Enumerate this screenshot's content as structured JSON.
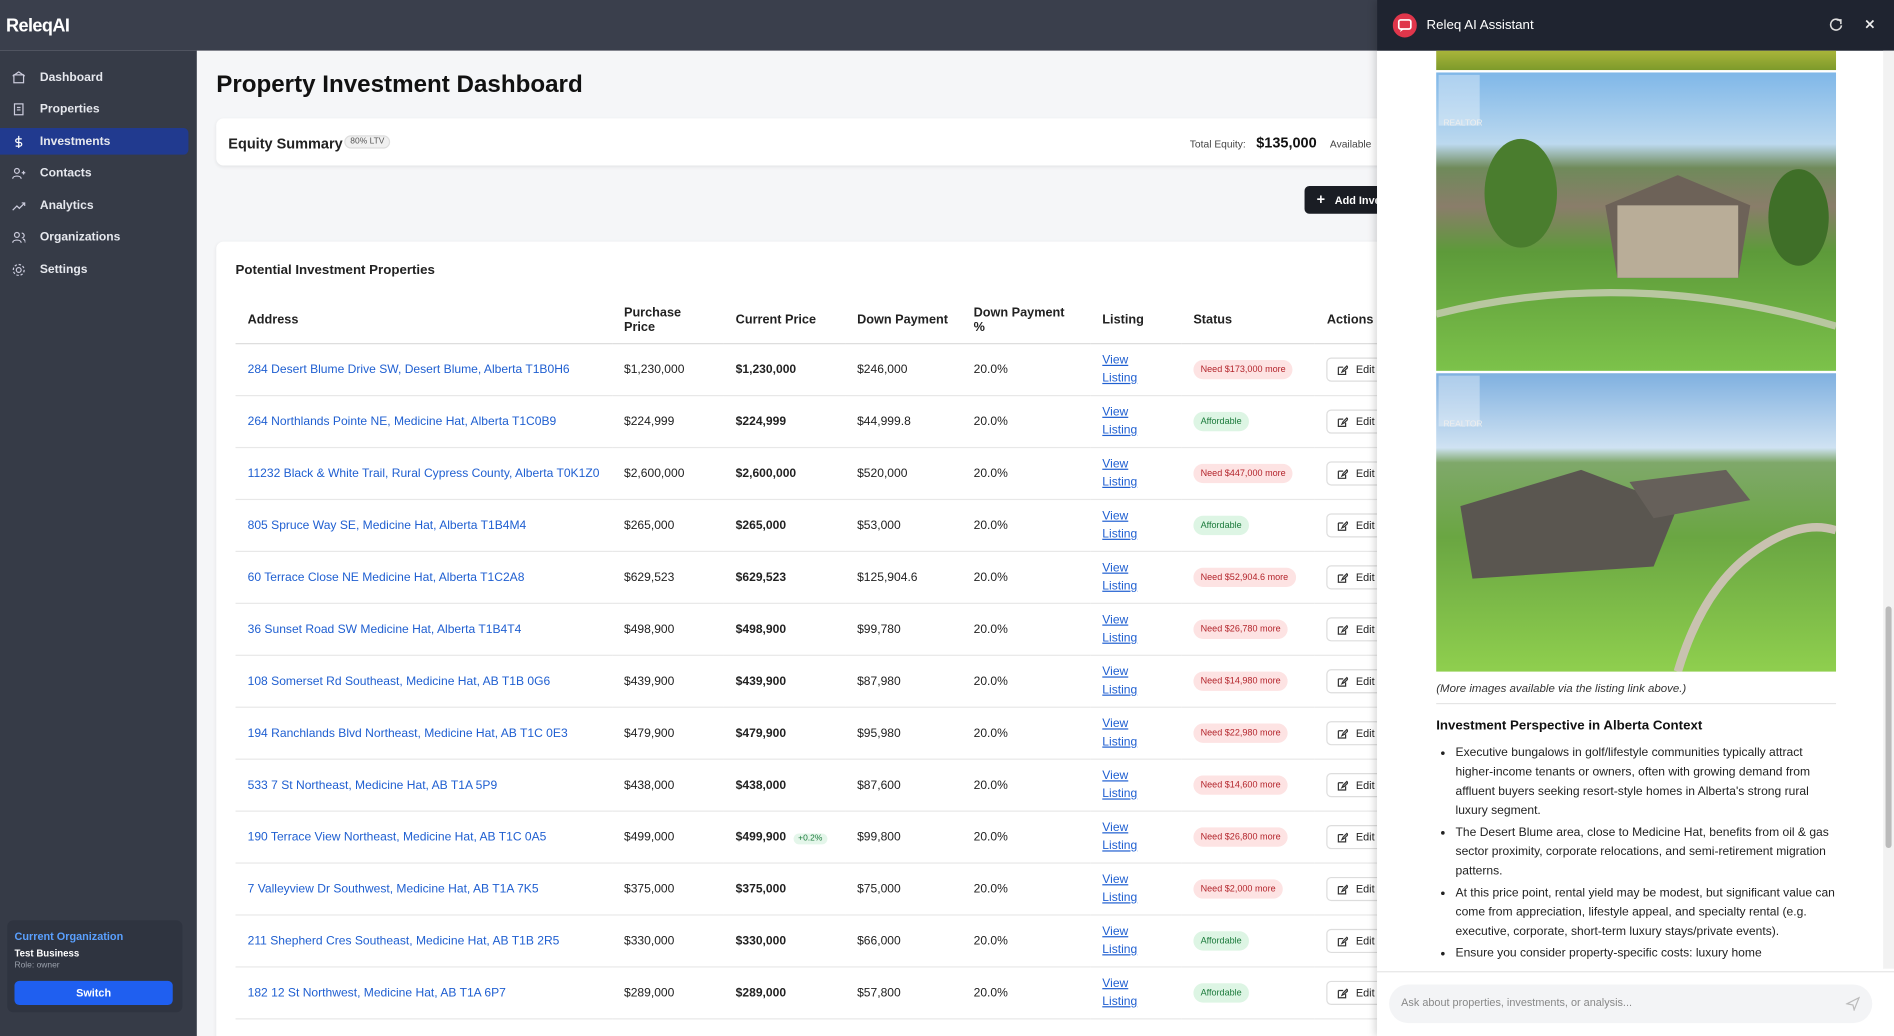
{
  "brand": "ReleqAI",
  "nav": [
    "Dashboard",
    "Properties",
    "Investments",
    "Contacts",
    "Analytics",
    "Organizations",
    "Settings"
  ],
  "active_nav": "Investments",
  "org": {
    "heading": "Current Organization",
    "name": "Test Business",
    "role": "Role: owner",
    "button": "Switch"
  },
  "page_title": "Property Investment Dashboard",
  "equity": {
    "title": "Equity Summary",
    "badge": "80% LTV",
    "total_label": "Total Equity:",
    "total_value": "$135,000",
    "available_label": "Available"
  },
  "add_button": "Add Investment",
  "table": {
    "title": "Potential Investment Properties",
    "headers": [
      "Address",
      "Purchase Price",
      "Current Price",
      "Down Payment",
      "Down Payment %",
      "Listing",
      "Status",
      "Actions"
    ],
    "listing_label": "View Listing",
    "edit_label": "Edit",
    "rows": [
      {
        "address": "284 Desert Blume Drive SW, Desert Blume, Alberta T1B0H6",
        "purchase_price": "$1,230,000",
        "current_price": "$1,230,000",
        "down_payment": "$246,000",
        "down_payment_pct": "20.0%",
        "status": "Need $173,000 more"
      },
      {
        "address": "264 Northlands Pointe NE, Medicine Hat, Alberta T1C0B9",
        "purchase_price": "$224,999",
        "current_price": "$224,999",
        "down_payment": "$44,999.8",
        "down_payment_pct": "20.0%",
        "status": "Affordable"
      },
      {
        "address": "11232 Black & White Trail, Rural Cypress County, Alberta T0K1Z0",
        "purchase_price": "$2,600,000",
        "current_price": "$2,600,000",
        "down_payment": "$520,000",
        "down_payment_pct": "20.0%",
        "status": "Need $447,000 more"
      },
      {
        "address": "805 Spruce Way SE, Medicine Hat, Alberta T1B4M4",
        "purchase_price": "$265,000",
        "current_price": "$265,000",
        "down_payment": "$53,000",
        "down_payment_pct": "20.0%",
        "status": "Affordable"
      },
      {
        "address": "60 Terrace Close NE Medicine Hat, Alberta T1C2A8",
        "purchase_price": "$629,523",
        "current_price": "$629,523",
        "down_payment": "$125,904.6",
        "down_payment_pct": "20.0%",
        "status": "Need $52,904.6 more"
      },
      {
        "address": "36 Sunset Road SW Medicine Hat, Alberta T1B4T4",
        "purchase_price": "$498,900",
        "current_price": "$498,900",
        "down_payment": "$99,780",
        "down_payment_pct": "20.0%",
        "status": "Need $26,780 more"
      },
      {
        "address": "108 Somerset Rd Southeast, Medicine Hat, AB T1B 0G6",
        "purchase_price": "$439,900",
        "current_price": "$439,900",
        "down_payment": "$87,980",
        "down_payment_pct": "20.0%",
        "status": "Need $14,980 more"
      },
      {
        "address": "194 Ranchlands Blvd Northeast, Medicine Hat, AB T1C 0E3",
        "purchase_price": "$479,900",
        "current_price": "$479,900",
        "down_payment": "$95,980",
        "down_payment_pct": "20.0%",
        "status": "Need $22,980 more"
      },
      {
        "address": "533 7 St Northeast, Medicine Hat, AB T1A 5P9",
        "purchase_price": "$438,000",
        "current_price": "$438,000",
        "down_payment": "$87,600",
        "down_payment_pct": "20.0%",
        "status": "Need $14,600 more"
      },
      {
        "address": "190 Terrace View Northeast, Medicine Hat, AB T1C 0A5",
        "purchase_price": "$499,000",
        "current_price": "$499,900",
        "change": "+0.2%",
        "down_payment": "$99,800",
        "down_payment_pct": "20.0%",
        "status": "Need $26,800 more"
      },
      {
        "address": "7 Valleyview Dr Southwest, Medicine Hat, AB T1A 7K5",
        "purchase_price": "$375,000",
        "current_price": "$375,000",
        "down_payment": "$75,000",
        "down_payment_pct": "20.0%",
        "status": "Need $2,000 more"
      },
      {
        "address": "211 Shepherd Cres Southeast, Medicine Hat, AB T1B 2R5",
        "purchase_price": "$330,000",
        "current_price": "$330,000",
        "down_payment": "$66,000",
        "down_payment_pct": "20.0%",
        "status": "Affordable"
      },
      {
        "address": "182 12 St Northwest, Medicine Hat, AB T1A 6P7",
        "purchase_price": "$289,000",
        "current_price": "$289,000",
        "down_payment": "$57,800",
        "down_payment_pct": "20.0%",
        "status": "Affordable"
      }
    ]
  },
  "assistant": {
    "title": "Releq AI Assistant",
    "watermark": "REALTOR",
    "caption": "(More images available via the listing link above.)",
    "heading": "Investment Perspective in Alberta Context",
    "bullets": [
      "Executive bungalows in golf/lifestyle communities typically attract higher-income tenants or owners, often with growing demand from affluent buyers seeking resort-style homes in Alberta's strong rural luxury segment.",
      "The Desert Blume area, close to Medicine Hat, benefits from oil & gas sector proximity, corporate relocations, and semi-retirement migration patterns.",
      "At this price point, rental yield may be modest, but significant value can come from appreciation, lifestyle appeal, and specialty rental (e.g. executive, corporate, short-term luxury stays/private events).",
      "Ensure you consider property-specific costs: luxury home"
    ],
    "placeholder": "Ask about properties, investments, or analysis..."
  }
}
